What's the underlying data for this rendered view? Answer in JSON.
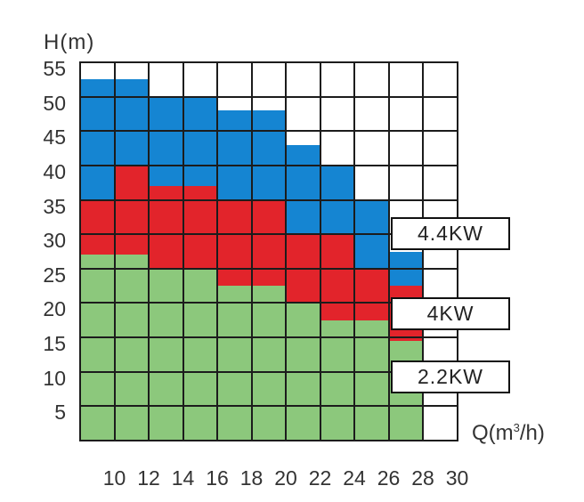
{
  "colors": {
    "blue": "#1585d2",
    "red": "#e2242b",
    "green": "#8cc87c",
    "grid_line": "#1c1c1c",
    "text": "#333333",
    "box_border": "#111111",
    "box_fill": "#ffffff",
    "background": "#ffffff"
  },
  "chart_data": {
    "type": "area",
    "subtype": "stacked-step-power-field",
    "title": "",
    "ylabel": "H(m)",
    "xlabel_parts": {
      "pre": "Q(m",
      "sup": "3",
      "post": "/h)"
    },
    "xlim": [
      8,
      30
    ],
    "ylim": [
      0,
      55
    ],
    "x_ticks": [
      10,
      12,
      14,
      16,
      18,
      20,
      22,
      24,
      26,
      28,
      30
    ],
    "y_ticks": [
      55,
      50,
      45,
      40,
      35,
      30,
      25,
      20,
      15,
      10,
      5
    ],
    "grid": true,
    "bands_meaning": [
      {
        "name": "2.2KW",
        "color_key": "green",
        "position": "bottom"
      },
      {
        "name": "4KW",
        "color_key": "red",
        "position": "middle"
      },
      {
        "name": "4.4KW",
        "color_key": "blue",
        "position": "top"
      }
    ],
    "columns": [
      {
        "q0": 8,
        "q1": 10,
        "green": 27,
        "red": 35,
        "blue": 52.5
      },
      {
        "q0": 10,
        "q1": 12,
        "green": 27,
        "red": 40,
        "blue": 52.5
      },
      {
        "q0": 12,
        "q1": 14,
        "green": 25,
        "red": 37,
        "blue": 50
      },
      {
        "q0": 14,
        "q1": 16,
        "green": 25,
        "red": 37,
        "blue": 50
      },
      {
        "q0": 16,
        "q1": 18,
        "green": 22.5,
        "red": 35,
        "blue": 48
      },
      {
        "q0": 18,
        "q1": 20,
        "green": 22.5,
        "red": 35,
        "blue": 48
      },
      {
        "q0": 20,
        "q1": 22,
        "green": 20,
        "red": 30,
        "blue": 43
      },
      {
        "q0": 22,
        "q1": 24,
        "green": 17.5,
        "red": 30,
        "blue": 40
      },
      {
        "q0": 24,
        "q1": 26,
        "green": 17.5,
        "red": 25,
        "blue": 35
      },
      {
        "q0": 26,
        "q1": 28,
        "green": 14.5,
        "red": 22.5,
        "blue": 27.5
      },
      {
        "q0": 28,
        "q1": 30,
        "green": null,
        "red": null,
        "blue": null
      }
    ],
    "legend_boxes": [
      {
        "label": "4.4KW"
      },
      {
        "label": "4KW"
      },
      {
        "label": "2.2KW"
      }
    ]
  }
}
